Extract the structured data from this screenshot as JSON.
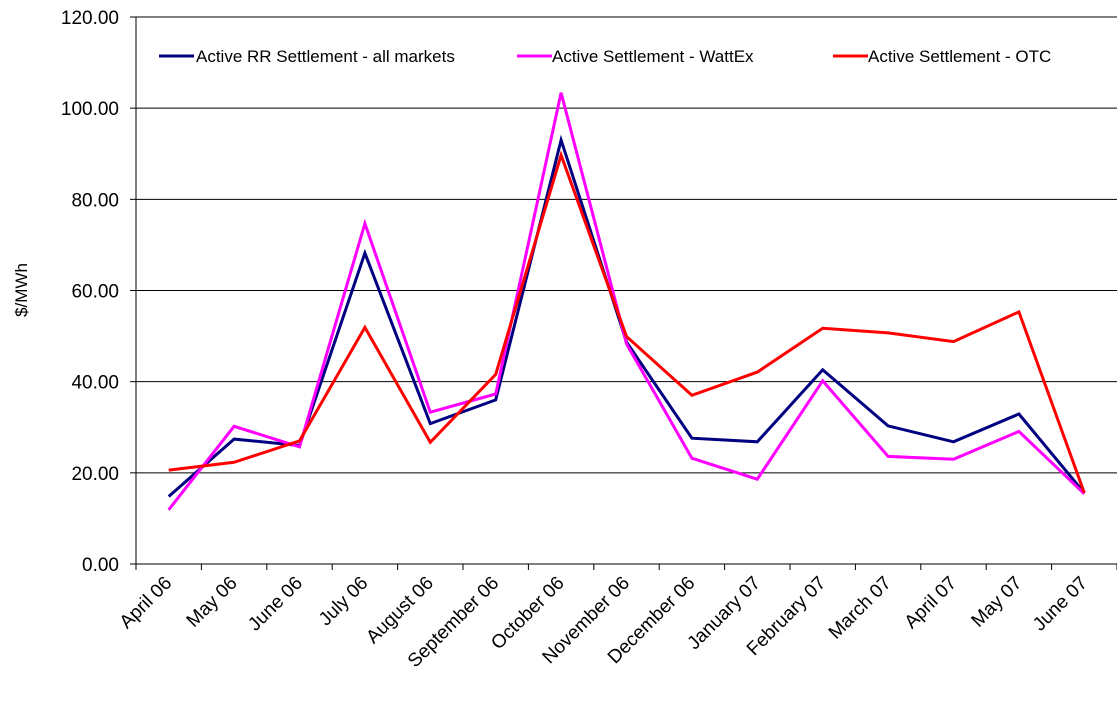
{
  "chart_data": {
    "type": "line",
    "title": "",
    "xlabel": "",
    "ylabel": "$/MWh",
    "ylim": [
      0,
      120
    ],
    "yticks": [
      "0.00",
      "20.00",
      "40.00",
      "60.00",
      "80.00",
      "100.00",
      "120.00"
    ],
    "grid": true,
    "legend_position": "top",
    "categories": [
      "April 06",
      "May 06",
      "June 06",
      "July 06",
      "August 06",
      "September 06",
      "October 06",
      "November 06",
      "December 06",
      "January 07",
      "February 07",
      "March 07",
      "April 07",
      "May  07",
      "June 07"
    ],
    "series": [
      {
        "name": "Active RR Settlement - all markets",
        "color": "#000080",
        "values": [
          14.8,
          27.4,
          26.0,
          68.2,
          30.8,
          36.0,
          93.0,
          48.7,
          27.6,
          26.8,
          42.6,
          30.3,
          26.8,
          32.9,
          15.6
        ]
      },
      {
        "name": "Active Settlement - WattEx",
        "color": "#ff00ff",
        "values": [
          11.9,
          30.2,
          25.7,
          74.7,
          33.3,
          37.3,
          103.4,
          48.3,
          23.2,
          18.6,
          40.2,
          23.6,
          23.0,
          29.1,
          15.4
        ]
      },
      {
        "name": "Active Settlement - OTC",
        "color": "#ff0000",
        "values": [
          20.6,
          22.3,
          27.0,
          51.9,
          26.7,
          41.6,
          89.7,
          49.9,
          37.0,
          42.1,
          51.7,
          50.7,
          48.8,
          55.3,
          15.6
        ]
      }
    ]
  }
}
